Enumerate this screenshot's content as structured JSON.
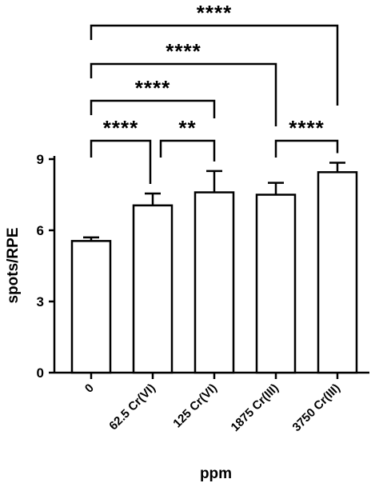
{
  "chart_data": {
    "type": "bar",
    "categories": [
      "0",
      "62.5 Cr(VI)",
      "125 Cr(VI)",
      "1875 Cr(III)",
      "3750 Cr(III)"
    ],
    "values": [
      5.55,
      7.05,
      7.6,
      7.5,
      8.45
    ],
    "error": [
      0.15,
      0.5,
      0.9,
      0.5,
      0.4
    ],
    "ylim": [
      0,
      9
    ],
    "yticks": [
      "0",
      "3",
      "6",
      "9"
    ],
    "xlabel": "ppm",
    "ylabel": "spots/RPE",
    "comparisons": [
      {
        "from": 0,
        "to": 1,
        "label": "****",
        "level": 0
      },
      {
        "from": 1,
        "to": 2,
        "label": "**",
        "level": 0
      },
      {
        "from": 3,
        "to": 4,
        "label": "****",
        "level": 0
      },
      {
        "from": 0,
        "to": 2,
        "label": "****",
        "level": 1
      },
      {
        "from": 0,
        "to": 3,
        "label": "****",
        "level": 2
      },
      {
        "from": 0,
        "to": 4,
        "label": "****",
        "level": 3
      }
    ]
  }
}
